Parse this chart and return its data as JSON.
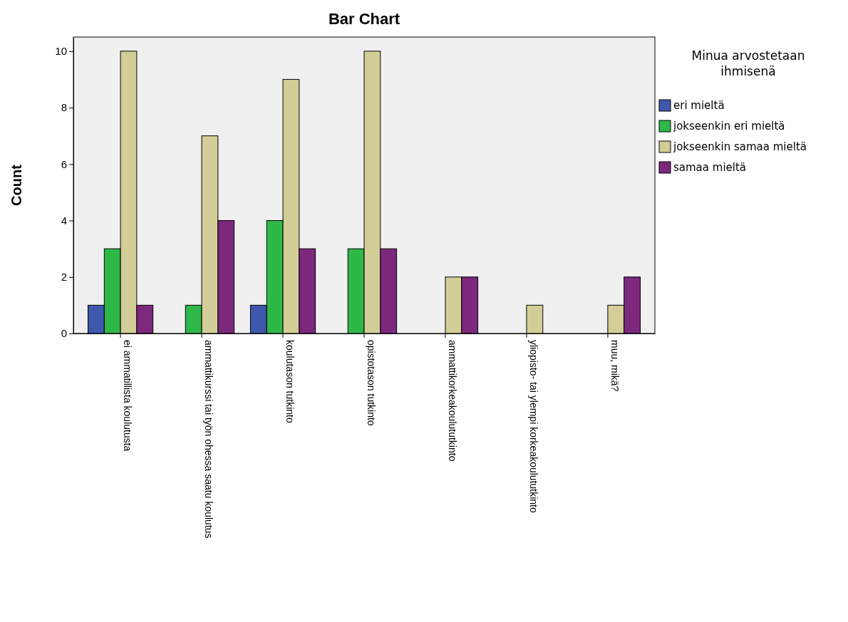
{
  "chart_data": {
    "type": "bar",
    "title": "Bar Chart",
    "ylabel": "Count",
    "legend_title": "Minua arvostetaan ihmisenä",
    "categories": [
      "ei ammatillista koulutusta",
      "ammattikurssi tai työn ohessa saatu koulutus",
      "koulutason tutkinto",
      "opistotason tutkinto",
      "ammattikorkeakoulututkinto",
      "yliopisto- tai ylempi korkeakoulututkinto",
      "muu, mikä?"
    ],
    "series": [
      {
        "name": "eri mieltä",
        "color": "#3e58ac",
        "values": [
          1,
          null,
          1,
          null,
          null,
          null,
          null
        ]
      },
      {
        "name": "jokseenkin eri mieltä",
        "color": "#2eb848",
        "values": [
          3,
          1,
          4,
          3,
          null,
          null,
          null
        ]
      },
      {
        "name": "jokseenkin samaa mieltä",
        "color": "#d3ce97",
        "values": [
          10,
          7,
          9,
          10,
          2,
          1,
          1
        ]
      },
      {
        "name": "samaa mieltä",
        "color": "#7c287d",
        "values": [
          1,
          4,
          3,
          3,
          2,
          null,
          2
        ]
      }
    ],
    "ylim": [
      0,
      10.5
    ],
    "yticks": [
      0,
      2,
      4,
      6,
      8,
      10
    ],
    "grid": false,
    "legend": "right"
  }
}
